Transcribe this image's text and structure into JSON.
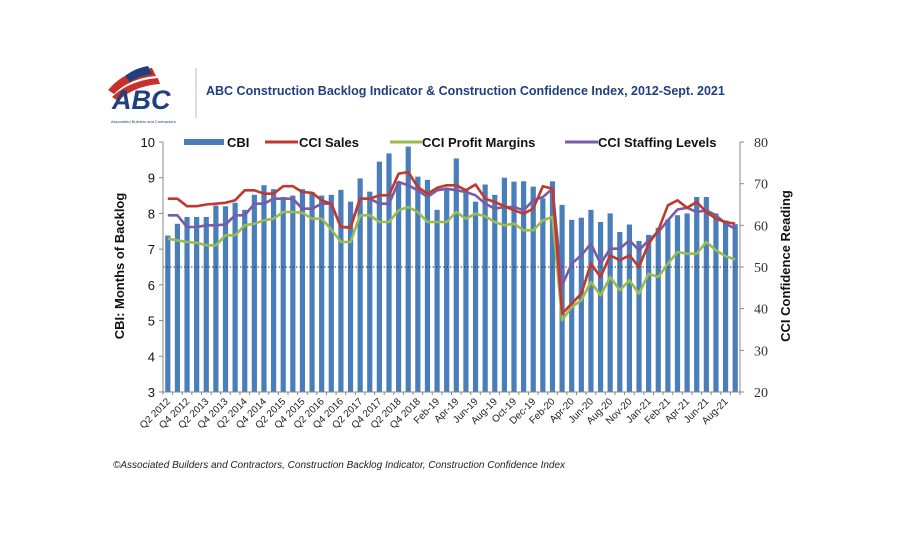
{
  "header": {
    "logo_text": "ABC",
    "logo_subtext": "Associated Builders and Contractors",
    "title": "ABC Construction Backlog Indicator & Construction Confidence Index, 2012-Sept. 2021"
  },
  "footer": "©Associated Builders and Contractors, Construction Backlog Indicator, Construction Confidence Index",
  "colors": {
    "cbi": "#4a7ebb",
    "sales": "#c0392f",
    "profit": "#9bbb4f",
    "staffing": "#7a5ba6",
    "title": "#1f3f7f"
  },
  "chart_data": {
    "type": "bar+line",
    "title": "ABC Construction Backlog Indicator & Construction Confidence Index, 2012-Sept. 2021",
    "ylabel_left": "CBI: Months of Backlog",
    "ylabel_right": "CCI Confidence Reading",
    "ylim_left": [
      3,
      10
    ],
    "ylim_right": [
      20,
      80
    ],
    "yticks_left": [
      "3",
      "4",
      "5",
      "6",
      "7",
      "8",
      "9",
      "10"
    ],
    "yticks_right": [
      "20",
      "30",
      "40",
      "50",
      "60",
      "70",
      "80"
    ],
    "reference_line_right": 50,
    "legend_position": "top",
    "grid": false,
    "x_tick_labels": [
      "Q2 2012",
      "Q4 2012",
      "Q2 2013",
      "Q4 2013",
      "Q2 2014",
      "Q4 2014",
      "Q2 2015",
      "Q4 2015",
      "Q2 2016",
      "Q4 2016",
      "Q2 2017",
      "Q4 2017",
      "Q2 2018",
      "Q4 2018",
      "Feb-19",
      "Apr-19",
      "Jun-19",
      "Aug-19",
      "Oct-19",
      "Dec-19",
      "Feb-20",
      "Apr-20",
      "Jun-20",
      "Aug-20",
      "Nov-20",
      "Jan-21",
      "Feb-21",
      "Apr-21",
      "Jun-21",
      "Aug-21"
    ],
    "series": [
      {
        "name": "CBI",
        "type": "bar",
        "axis": "left",
        "values": [
          7.38,
          7.71,
          7.9,
          7.9,
          7.9,
          8.22,
          8.2,
          8.3,
          8.1,
          8.52,
          8.79,
          8.68,
          8.46,
          8.5,
          8.68,
          8.6,
          8.5,
          8.52,
          8.66,
          8.33,
          8.98,
          8.61,
          9.45,
          9.68,
          8.89,
          9.87,
          9.03,
          8.94,
          8.1,
          8.66,
          9.54,
          8.7,
          8.33,
          8.81,
          8.52,
          9.0,
          8.89,
          8.9,
          8.75,
          8.42,
          8.9,
          8.24,
          7.82,
          7.88,
          8.1,
          7.76,
          8.0,
          7.48,
          7.69,
          7.23,
          7.4,
          7.6,
          7.83,
          7.95,
          8.0,
          8.46,
          8.46,
          8.0,
          7.8,
          7.7
        ]
      },
      {
        "name": "CCI Sales",
        "type": "line",
        "axis": "right",
        "values": [
          66.4,
          66.4,
          64.6,
          64.6,
          65.0,
          65.2,
          65.4,
          66.0,
          68.4,
          68.4,
          67.6,
          67.6,
          69.4,
          69.4,
          68.0,
          67.8,
          66.0,
          65.2,
          59.6,
          59.4,
          66.4,
          66.4,
          67.2,
          67.2,
          72.4,
          72.8,
          69.2,
          67.6,
          69.0,
          69.6,
          69.6,
          68.4,
          69.8,
          66.4,
          65.6,
          64.6,
          63.6,
          62.8,
          64.0,
          69.4,
          68.8,
          38.8,
          41.2,
          43.6,
          50.8,
          47.6,
          52.8,
          51.6,
          52.8,
          50.0,
          55.6,
          58.8,
          64.8,
          66.0,
          64.2,
          65.6,
          63.2,
          61.6,
          60.8,
          60.4
        ]
      },
      {
        "name": "CCI Profit Margins",
        "type": "line",
        "axis": "right",
        "values": [
          56.8,
          56.4,
          56.0,
          55.8,
          55.2,
          55.2,
          57.6,
          57.6,
          60.0,
          60.4,
          61.2,
          61.6,
          63.2,
          63.2,
          63.0,
          61.6,
          61.6,
          59.0,
          56.0,
          56.0,
          62.4,
          62.4,
          60.8,
          60.8,
          63.6,
          64.4,
          63.2,
          60.8,
          60.8,
          60.8,
          63.2,
          61.6,
          62.8,
          62.2,
          60.8,
          60.0,
          60.4,
          58.8,
          58.8,
          61.2,
          62.0,
          37.2,
          40.4,
          42.0,
          46.4,
          43.2,
          47.6,
          44.4,
          46.8,
          43.6,
          48.4,
          47.6,
          50.8,
          53.6,
          53.2,
          53.2,
          56.0,
          54.0,
          52.6,
          51.8
        ]
      },
      {
        "name": "CCI Staffing Levels",
        "type": "line",
        "axis": "right",
        "values": [
          62.4,
          62.4,
          59.6,
          59.6,
          60.0,
          60.0,
          60.2,
          62.4,
          62.4,
          65.2,
          65.2,
          66.4,
          66.4,
          66.4,
          64.0,
          64.0,
          65.2,
          65.2,
          59.6,
          59.6,
          66.4,
          66.4,
          65.2,
          65.2,
          70.4,
          69.6,
          68.4,
          66.8,
          68.4,
          68.8,
          68.4,
          68.0,
          67.2,
          65.2,
          64.0,
          64.4,
          64.4,
          63.6,
          66.0,
          66.8,
          68.8,
          45.6,
          50.8,
          52.8,
          55.6,
          50.8,
          54.4,
          54.4,
          56.4,
          54.0,
          56.4,
          58.4,
          61.2,
          63.8,
          64.2,
          63.2,
          63.6,
          62.4,
          60.4,
          59.2
        ]
      }
    ]
  }
}
